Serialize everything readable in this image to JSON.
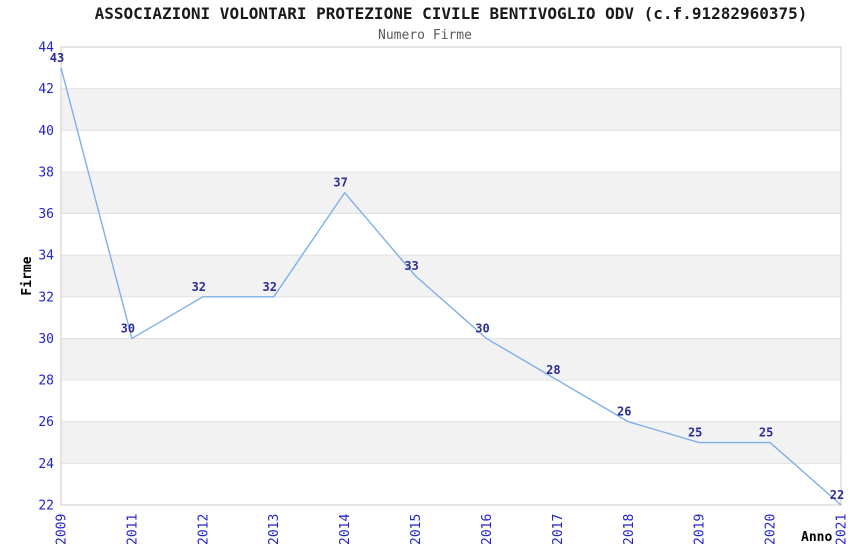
{
  "chart_data": {
    "type": "line",
    "title": "ASSOCIAZIONI VOLONTARI PROTEZIONE CIVILE BENTIVOGLIO ODV (c.f.91282960375)",
    "subtitle": "Numero Firme",
    "xlabel": "Anno",
    "ylabel": "Firme",
    "categories": [
      "2009",
      "2011",
      "2012",
      "2013",
      "2014",
      "2015",
      "2016",
      "2017",
      "2018",
      "2019",
      "2020",
      "2021"
    ],
    "values": [
      43,
      30,
      32,
      32,
      37,
      33,
      30,
      28,
      26,
      25,
      25,
      22
    ],
    "yticks": [
      22,
      24,
      26,
      28,
      30,
      32,
      34,
      36,
      38,
      40,
      42,
      44
    ],
    "ylim": [
      22,
      44
    ],
    "grid": "horizontal",
    "banding": "alternating-horizontal",
    "legend_position": "none",
    "markers": "none",
    "data_labels_shown": true,
    "colors": {
      "line": "#7fb0e6",
      "tick_label": "#2323cc",
      "data_label": "#2d2d96",
      "band": "#f2f2f2",
      "gridline": "#e2e2e2",
      "plot_border": "#cccccc",
      "title": "#1a1a1a",
      "subtitle": "#5a5a5a",
      "axis_title": "#000000",
      "background": "#ffffff"
    }
  }
}
